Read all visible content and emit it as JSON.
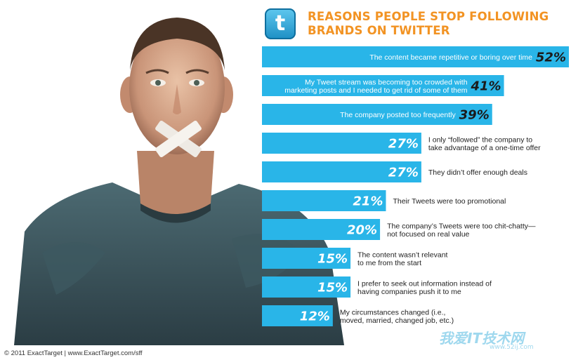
{
  "chart_data": {
    "type": "bar",
    "orientation": "horizontal",
    "title": "REASONS PEOPLE STOP FOLLOWING BRANDS ON TWITTER",
    "title_lines": [
      "REASONS PEOPLE STOP FOLLOWING",
      "BRANDS ON TWITTER"
    ],
    "bar_color": "#29b5e8",
    "title_color": "#f29323",
    "xlim": [
      0,
      52
    ],
    "categories": [
      "The content became repetitive or boring over time",
      "My Tweet stream was becoming too crowded with marketing posts and I needed to get rid of some of them",
      "The company posted too frequently",
      "I only “followed” the company to take advantage of a one-time offer",
      "They didn’t offer enough deals",
      "Their Tweets were too promotional",
      "The company’s Tweets were too chit-chatty— not focused on real value",
      "The content wasn’t relevant to me from the start",
      "I prefer to seek out information instead of having companies push it to me",
      "My circumstances changed (i.e., moved, married, changed job, etc.)"
    ],
    "category_lines": [
      [
        "The content became repetitive or boring over time"
      ],
      [
        "My Tweet stream was becoming too crowded with",
        "marketing posts and I needed to get rid of some of them"
      ],
      [
        "The company posted too frequently"
      ],
      [
        "I only “followed” the company to",
        "take advantage of a one-time offer"
      ],
      [
        "They didn’t offer enough deals"
      ],
      [
        "Their Tweets were too promotional"
      ],
      [
        "The company’s Tweets were too chit-chatty—",
        "not focused on real value"
      ],
      [
        "The content wasn’t relevant",
        "to me from the start"
      ],
      [
        "I prefer to seek out information instead of",
        "having companies push it to me"
      ],
      [
        "My circumstances changed (i.e.,",
        "moved, married, changed job, etc.)"
      ]
    ],
    "values": [
      52,
      41,
      39,
      27,
      27,
      21,
      20,
      15,
      15,
      12
    ],
    "value_labels": [
      "52%",
      "41%",
      "39%",
      "27%",
      "27%",
      "21%",
      "20%",
      "15%",
      "15%",
      "12%"
    ]
  },
  "logo": {
    "icon": "twitter-bird-icon",
    "glyph": "t"
  },
  "footer": "© 2011 ExactTarget  |  www.ExactTarget.com/sff",
  "watermark": {
    "text": "我爱IT技术网",
    "url": "www.52ij.com"
  }
}
